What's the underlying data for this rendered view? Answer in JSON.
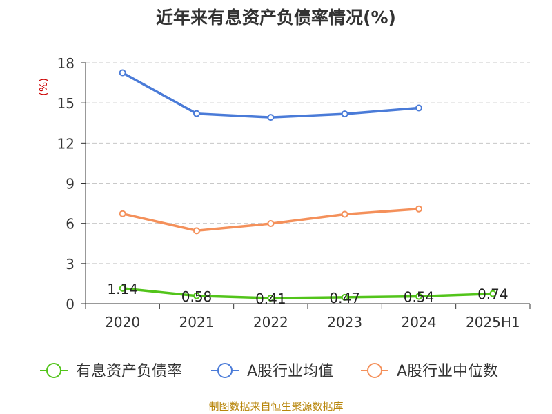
{
  "title": "近年来有息资产负债率情况(%)",
  "source": "制图数据来自恒生聚源数据库",
  "chart_data": {
    "type": "line",
    "title": "近年来有息资产负债率情况(%)",
    "ylabel": "(%)",
    "xlabel": "",
    "ylim": [
      0,
      18
    ],
    "yticks": [
      0,
      3,
      6,
      9,
      12,
      15,
      18
    ],
    "grid": true,
    "legend_position": "bottom",
    "categories": [
      "2020",
      "2021",
      "2022",
      "2023",
      "2024",
      "2025H1"
    ],
    "series": [
      {
        "name": "有息资产负债率",
        "color": "#52c41a",
        "values": [
          1.14,
          0.58,
          0.41,
          0.47,
          0.54,
          0.74
        ],
        "data_labels": [
          "1.14",
          "0.58",
          "0.41",
          "0.47",
          "0.54",
          "0.74"
        ]
      },
      {
        "name": "A股行业均值",
        "color": "#4a7bd8",
        "values": [
          17.25,
          14.2,
          13.92,
          14.18,
          14.62,
          null
        ]
      },
      {
        "name": "A股行业中位数",
        "color": "#f4905a",
        "values": [
          6.72,
          5.45,
          5.98,
          6.68,
          7.08,
          null
        ]
      }
    ]
  }
}
